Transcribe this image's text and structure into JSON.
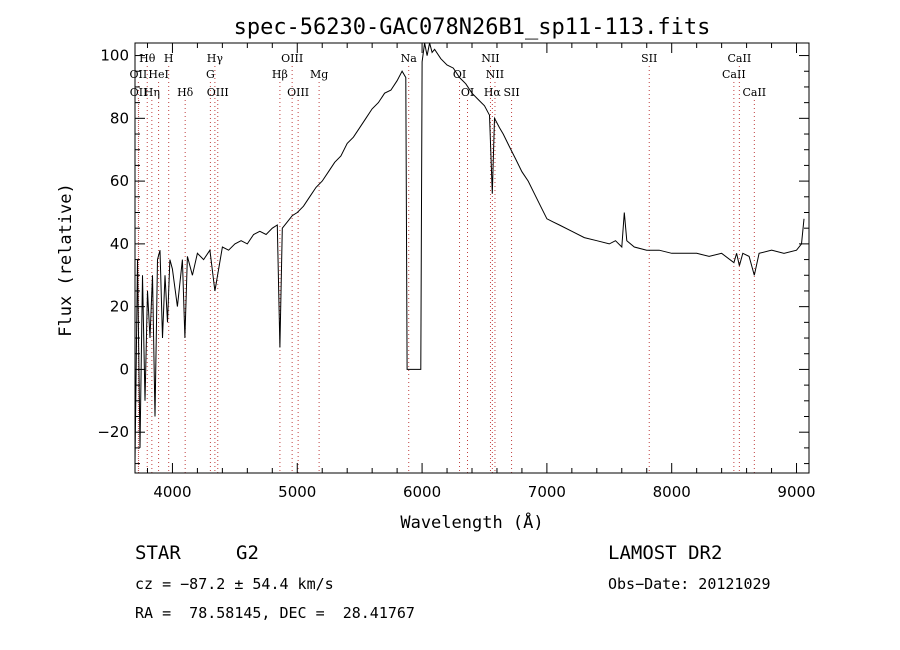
{
  "chart_data": {
    "type": "line",
    "title": "spec-56230-GAC078N26B1_sp11-113.fits",
    "xlabel": "Wavelength (Å)",
    "ylabel": "Flux (relative)",
    "xlim": [
      3700,
      9100
    ],
    "ylim": [
      -33,
      104
    ],
    "x_ticks": [
      4000,
      5000,
      6000,
      7000,
      8000,
      9000
    ],
    "x_tick_labels": [
      "4000",
      "5000",
      "6000",
      "7000",
      "8000",
      "9000"
    ],
    "y_ticks": [
      -20,
      0,
      20,
      40,
      60,
      80,
      100
    ],
    "y_tick_labels": [
      "−20",
      "0",
      "20",
      "40",
      "60",
      "80",
      "100"
    ],
    "grid": false,
    "series": [
      {
        "x": [
          3700,
          3720,
          3740,
          3760,
          3780,
          3800,
          3820,
          3840,
          3860,
          3880,
          3900,
          3920,
          3940,
          3960,
          3980,
          4000,
          4040,
          4080,
          4100,
          4120,
          4160,
          4200,
          4250,
          4300,
          4340,
          4400,
          4450,
          4500,
          4550,
          4600,
          4650,
          4700,
          4750,
          4800,
          4840,
          4861,
          4880,
          4920,
          4960,
          5000,
          5050,
          5100,
          5150,
          5200,
          5250,
          5300,
          5350,
          5400,
          5450,
          5500,
          5550,
          5600,
          5650,
          5700,
          5750,
          5800,
          5840,
          5870,
          5880,
          5900,
          5950,
          5990,
          6000,
          6020,
          6040,
          6060,
          6080,
          6100,
          6150,
          6200,
          6250,
          6300,
          6350,
          6400,
          6450,
          6500,
          6540,
          6563,
          6580,
          6620,
          6650,
          6700,
          6750,
          6800,
          6850,
          6900,
          6950,
          7000,
          7050,
          7100,
          7200,
          7300,
          7400,
          7500,
          7550,
          7600,
          7620,
          7640,
          7700,
          7800,
          7900,
          8000,
          8100,
          8200,
          8300,
          8400,
          8498,
          8520,
          8542,
          8570,
          8620,
          8662,
          8700,
          8800,
          8900,
          9000,
          9040,
          9060
        ],
        "y": [
          -30,
          35,
          -25,
          30,
          -10,
          25,
          10,
          30,
          -15,
          35,
          38,
          10,
          30,
          15,
          35,
          32,
          20,
          35,
          10,
          36,
          30,
          37,
          35,
          38,
          25,
          39,
          38,
          40,
          41,
          40,
          43,
          44,
          43,
          45,
          46,
          7,
          45,
          47,
          49,
          50,
          52,
          55,
          58,
          60,
          63,
          66,
          68,
          72,
          74,
          77,
          80,
          83,
          85,
          88,
          89,
          92,
          95,
          93,
          0,
          0,
          0,
          0,
          98,
          105,
          100,
          104,
          101,
          102,
          99,
          97,
          96,
          93,
          91,
          88,
          86,
          84,
          81,
          56,
          80,
          77,
          75,
          71,
          67,
          63,
          60,
          56,
          52,
          48,
          47,
          46,
          44,
          42,
          41,
          40,
          41,
          39,
          50,
          41,
          39,
          38,
          38,
          37,
          37,
          37,
          36,
          37,
          34,
          37,
          33,
          37,
          36,
          30,
          37,
          38,
          37,
          38,
          40,
          48
        ]
      }
    ],
    "line_markers": [
      {
        "label": "Hθ",
        "wavelength": 3798,
        "row": 0
      },
      {
        "label": "H",
        "wavelength": 3970,
        "row": 0
      },
      {
        "label": "Hγ",
        "wavelength": 4340,
        "row": 0
      },
      {
        "label": "OIII",
        "wavelength": 4959,
        "row": 0
      },
      {
        "label": "Na",
        "wavelength": 5893,
        "row": 0
      },
      {
        "label": "NII",
        "wavelength": 6548,
        "row": 0
      },
      {
        "label": "SII",
        "wavelength": 7820,
        "row": 0
      },
      {
        "label": "CaII",
        "wavelength": 8542,
        "row": 0
      },
      {
        "label": "OII",
        "wavelength": 3727,
        "row": 1
      },
      {
        "label": "HeI",
        "wavelength": 3889,
        "row": 1
      },
      {
        "label": "G",
        "wavelength": 4304,
        "row": 1
      },
      {
        "label": "Hβ",
        "wavelength": 4861,
        "row": 1
      },
      {
        "label": "Mg",
        "wavelength": 5175,
        "row": 1
      },
      {
        "label": "OI",
        "wavelength": 6300,
        "row": 1
      },
      {
        "label": "NII",
        "wavelength": 6584,
        "row": 1
      },
      {
        "label": "CaII",
        "wavelength": 8498,
        "row": 1
      },
      {
        "label": "OII",
        "wavelength": 3729,
        "row": 2
      },
      {
        "label": "Hη",
        "wavelength": 3835,
        "row": 2
      },
      {
        "label": "Hδ",
        "wavelength": 4102,
        "row": 2
      },
      {
        "label": "OIII",
        "wavelength": 4363,
        "row": 2
      },
      {
        "label": "OIII",
        "wavelength": 5007,
        "row": 2
      },
      {
        "label": "OI",
        "wavelength": 6364,
        "row": 2
      },
      {
        "label": "Hα",
        "wavelength": 6563,
        "row": 2
      },
      {
        "label": "SII",
        "wavelength": 6717,
        "row": 2
      },
      {
        "label": "CaII",
        "wavelength": 8662,
        "row": 2
      }
    ]
  },
  "info": {
    "object_class": "STAR",
    "subclass": "G2",
    "survey": "LAMOST DR2",
    "redshift": "cz = −87.2 ± 54.4 km/s",
    "obs_date": "Obs−Date: 20121029",
    "coords": "RA =  78.58145, DEC =  28.41767"
  }
}
